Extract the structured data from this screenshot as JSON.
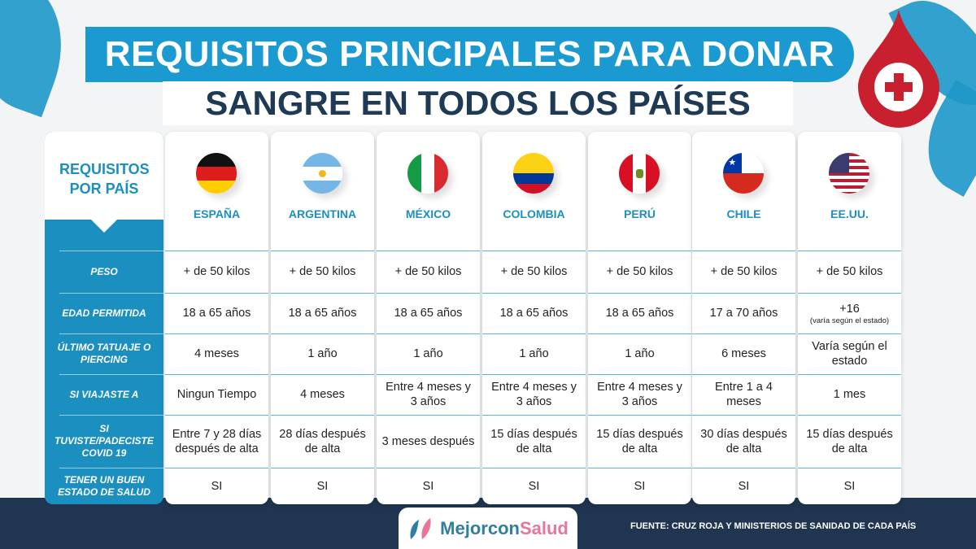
{
  "title": {
    "line1": "REQUISITOS PRINCIPALES PARA DONAR",
    "line2": "SANGRE EN TODOS LOS PAÍSES"
  },
  "header_label": "REQUISITOS POR PAÍS",
  "requirements": [
    "PESO",
    "EDAD PERMITIDA",
    "ÚLTIMO TATUAJE O PIERCING",
    "SI VIAJASTE A",
    "SI TUVISTE/PADECISTE COVID 19",
    "TENER UN BUEN ESTADO DE SALUD"
  ],
  "countries": [
    {
      "name": "ESPAÑA",
      "flag": "germany-flag",
      "values": [
        "+ de 50 kilos",
        "18 a 65 años",
        "4 meses",
        "Ningun Tiempo",
        "Entre 7 y 28 días después de alta",
        "SI"
      ]
    },
    {
      "name": "ARGENTINA",
      "flag": "argentina-flag",
      "values": [
        "+ de 50 kilos",
        "18 a 65 años",
        "1 año",
        "4 meses",
        "28 días después de alta",
        "SI"
      ]
    },
    {
      "name": "MÉXICO",
      "flag": "italy-flag",
      "values": [
        "+ de 50 kilos",
        "18 a 65 años",
        "1 año",
        "Entre 4 meses y 3 años",
        "3 meses después",
        "SI"
      ]
    },
    {
      "name": "COLOMBIA",
      "flag": "colombia-flag",
      "values": [
        "+ de 50 kilos",
        "18 a 65 años",
        "1 año",
        "Entre 4 meses y 3 años",
        "15 días después de alta",
        "SI"
      ]
    },
    {
      "name": "PERÚ",
      "flag": "peru-flag",
      "values": [
        "+ de 50 kilos",
        "18 a 65 años",
        "1 año",
        "Entre 4 meses y 3 años",
        "15 días después de alta",
        "SI"
      ]
    },
    {
      "name": "CHILE",
      "flag": "chile-flag",
      "values": [
        "+ de 50 kilos",
        "17 a 70 años",
        "6 meses",
        "Entre 1 a 4 meses",
        "30 días después de alta",
        "SI"
      ]
    },
    {
      "name": "EE.UU.",
      "flag": "usa-flag",
      "values": [
        "+ de 50 kilos",
        "+16",
        "Varía según el estado",
        "1 mes",
        "15 días después de alta",
        "SI"
      ],
      "age_note": "(varía según el estado)"
    }
  ],
  "logo": {
    "part1": "Mejor",
    "part2": "con",
    "part3": "Salud"
  },
  "source": "FUENTE: CRUZ ROJA Y MINISTERIOS DE SANIDAD DE CADA PAÍS",
  "colors": {
    "primary": "#1b8fc0",
    "navy": "#1f3550",
    "pink": "#e8759a",
    "red": "#c8202f"
  }
}
